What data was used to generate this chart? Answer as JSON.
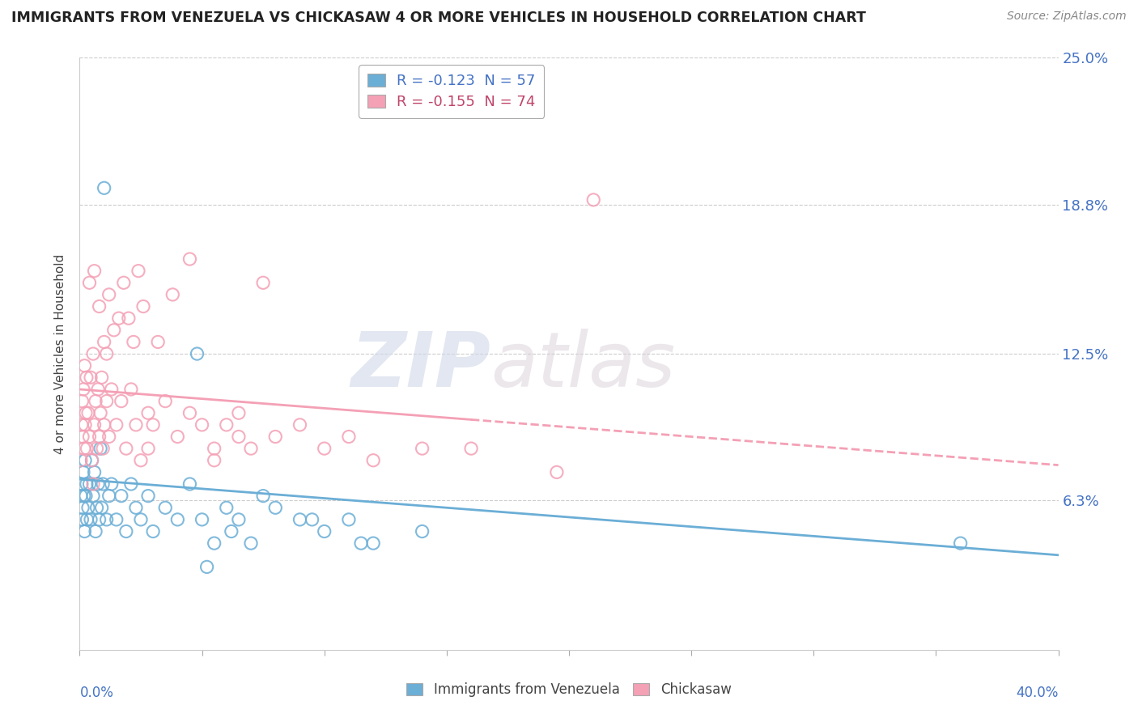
{
  "title": "IMMIGRANTS FROM VENEZUELA VS CHICKASAW 4 OR MORE VEHICLES IN HOUSEHOLD CORRELATION CHART",
  "source": "Source: ZipAtlas.com",
  "xmin": 0.0,
  "xmax": 40.0,
  "ymin": 0.0,
  "ymax": 25.0,
  "blue_R": -0.123,
  "blue_N": 57,
  "pink_R": -0.155,
  "pink_N": 74,
  "blue_color": "#6baed6",
  "pink_color": "#f4a0b5",
  "blue_label": "Immigrants from Venezuela",
  "pink_label": "Chickasaw",
  "ytick_vals": [
    6.3,
    12.5,
    18.8,
    25.0
  ],
  "blue_line_x0": 0.0,
  "blue_line_y0": 7.2,
  "blue_line_x1": 40.0,
  "blue_line_y1": 4.0,
  "pink_line_x0": 0.0,
  "pink_line_y0": 11.0,
  "pink_line_x1": 40.0,
  "pink_line_y1": 7.8,
  "pink_solid_end_x": 16.0,
  "blue_scatter_x": [
    0.05,
    0.08,
    0.1,
    0.12,
    0.15,
    0.18,
    0.2,
    0.22,
    0.25,
    0.28,
    0.3,
    0.35,
    0.4,
    0.45,
    0.5,
    0.55,
    0.6,
    0.65,
    0.7,
    0.75,
    0.8,
    0.85,
    0.9,
    0.95,
    1.0,
    1.1,
    1.2,
    1.3,
    1.5,
    1.7,
    1.9,
    2.1,
    2.3,
    2.5,
    2.8,
    3.0,
    3.5,
    4.0,
    4.5,
    5.0,
    5.5,
    6.0,
    6.5,
    7.0,
    8.0,
    9.0,
    10.0,
    11.0,
    12.0,
    14.0,
    4.8,
    6.2,
    7.5,
    9.5,
    11.5,
    36.0,
    5.2
  ],
  "blue_scatter_y": [
    6.5,
    7.0,
    5.5,
    6.0,
    7.5,
    6.5,
    5.0,
    8.0,
    6.5,
    7.0,
    5.5,
    6.0,
    7.0,
    5.5,
    8.0,
    6.5,
    7.5,
    5.0,
    6.0,
    7.0,
    5.5,
    8.5,
    6.0,
    7.0,
    19.5,
    5.5,
    6.5,
    7.0,
    5.5,
    6.5,
    5.0,
    7.0,
    6.0,
    5.5,
    6.5,
    5.0,
    6.0,
    5.5,
    7.0,
    5.5,
    4.5,
    6.0,
    5.5,
    4.5,
    6.0,
    5.5,
    5.0,
    5.5,
    4.5,
    5.0,
    12.5,
    5.0,
    6.5,
    5.5,
    4.5,
    4.5,
    3.5
  ],
  "pink_scatter_x": [
    0.05,
    0.08,
    0.1,
    0.12,
    0.15,
    0.18,
    0.2,
    0.22,
    0.25,
    0.28,
    0.3,
    0.35,
    0.4,
    0.45,
    0.5,
    0.55,
    0.6,
    0.65,
    0.7,
    0.75,
    0.8,
    0.85,
    0.9,
    0.95,
    1.0,
    1.1,
    1.2,
    1.3,
    1.5,
    1.7,
    1.9,
    2.1,
    2.3,
    2.5,
    2.8,
    3.0,
    3.5,
    4.0,
    4.5,
    5.0,
    5.5,
    6.0,
    6.5,
    7.0,
    8.0,
    9.0,
    10.0,
    11.0,
    12.0,
    14.0,
    0.4,
    0.6,
    0.8,
    1.0,
    1.2,
    1.4,
    1.6,
    1.8,
    2.0,
    2.2,
    2.4,
    2.6,
    2.8,
    3.2,
    3.8,
    4.5,
    5.5,
    6.5,
    16.0,
    19.5,
    0.55,
    1.1,
    7.5,
    21.0
  ],
  "pink_scatter_y": [
    8.0,
    9.5,
    10.5,
    9.0,
    11.0,
    8.5,
    12.0,
    9.5,
    10.0,
    11.5,
    8.5,
    10.0,
    9.0,
    11.5,
    8.0,
    12.5,
    9.5,
    10.5,
    8.5,
    11.0,
    9.0,
    10.0,
    11.5,
    8.5,
    9.5,
    10.5,
    9.0,
    11.0,
    9.5,
    10.5,
    8.5,
    11.0,
    9.5,
    8.0,
    10.0,
    9.5,
    10.5,
    9.0,
    10.0,
    9.5,
    8.5,
    9.5,
    10.0,
    8.5,
    9.0,
    9.5,
    8.5,
    9.0,
    8.0,
    8.5,
    15.5,
    16.0,
    14.5,
    13.0,
    15.0,
    13.5,
    14.0,
    15.5,
    14.0,
    13.0,
    16.0,
    14.5,
    8.5,
    13.0,
    15.0,
    16.5,
    8.0,
    9.0,
    8.5,
    7.5,
    7.0,
    12.5,
    15.5,
    19.0
  ]
}
